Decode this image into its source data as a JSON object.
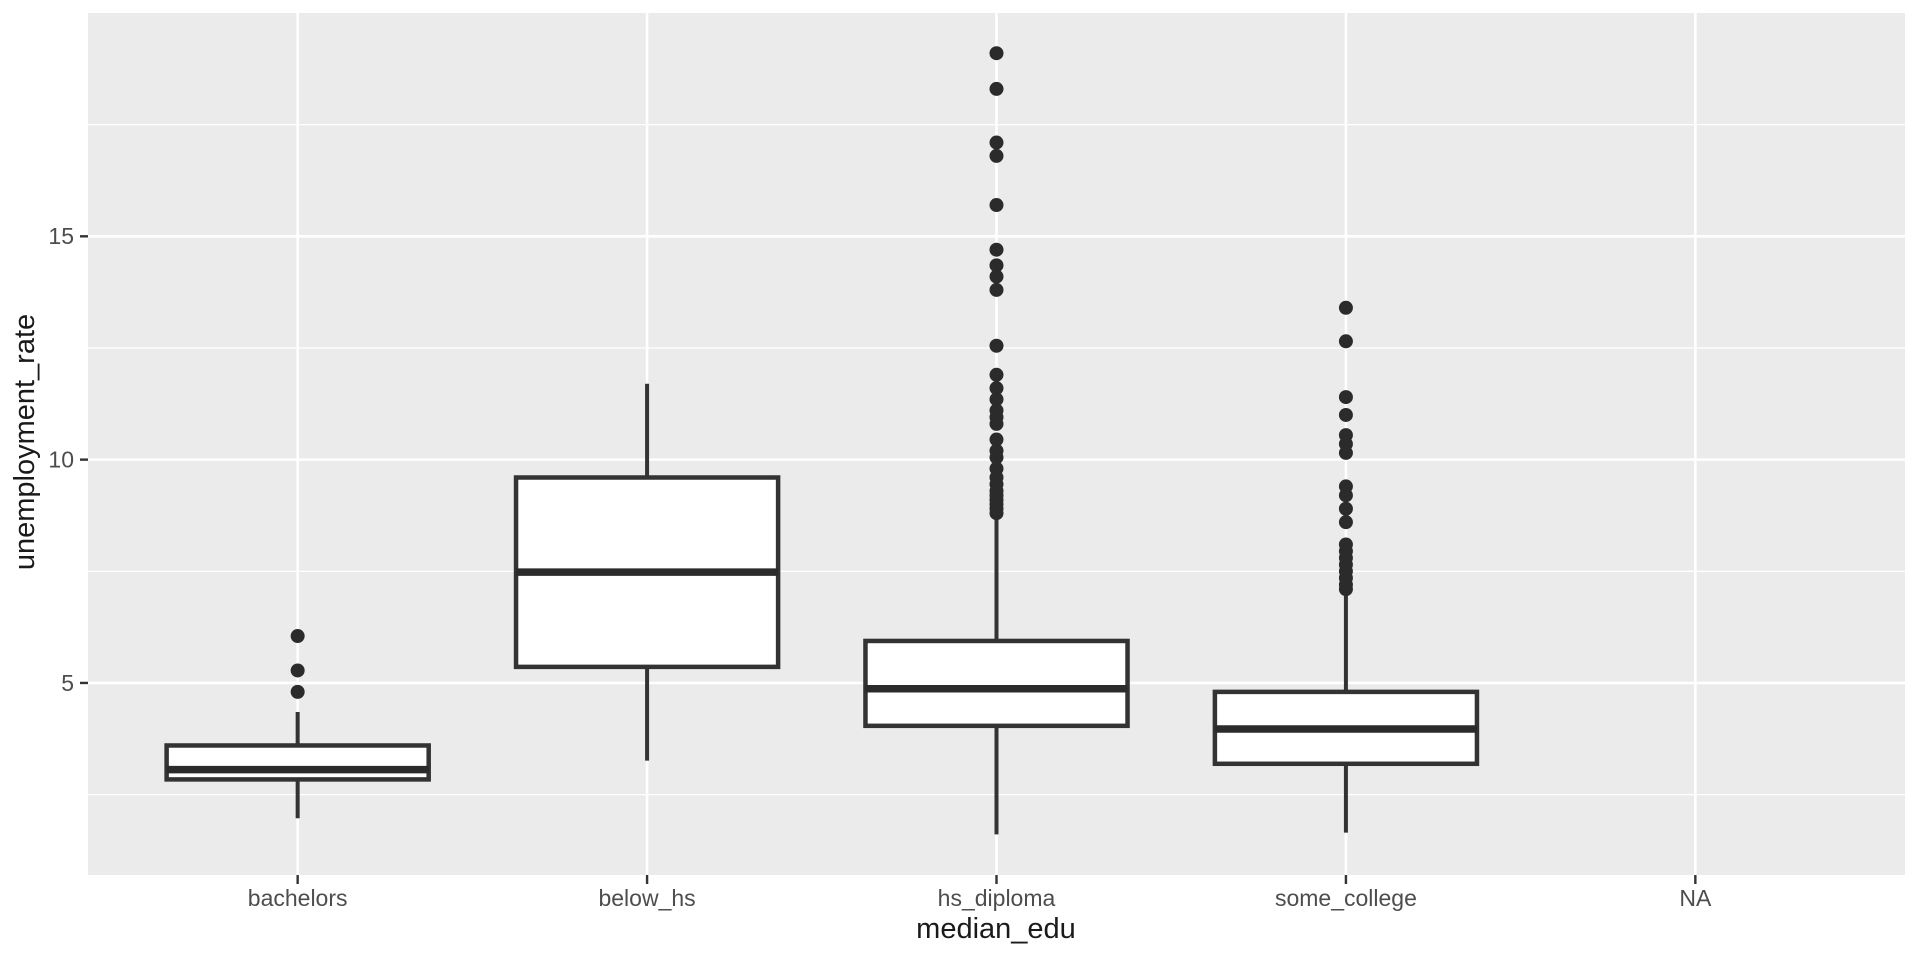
{
  "figure": {
    "background": "#ffffff",
    "panel_background": "#EBEBEB",
    "grid_color": "#FFFFFF",
    "box_stroke": "#333333",
    "box_fill": "#FFFFFF",
    "median_stroke": "#2b2b2b",
    "point_color": "#2b2b2b",
    "tick_label_color": "#4D4D4D",
    "tick_mark_color": "#333333",
    "axis_title_color": "#1a1a1a"
  },
  "chart_data": {
    "type": "boxplot",
    "title": "",
    "xlabel": "median_edu",
    "ylabel": "unemployment_rate",
    "categories": [
      "bachelors",
      "below_hs",
      "hs_diploma",
      "some_college",
      "NA"
    ],
    "y_ticks": [
      5,
      10,
      15
    ],
    "y_minor_ticks": [
      2.5,
      7.5,
      12.5,
      17.5
    ],
    "ylim": [
      0.7,
      20.0
    ],
    "grid": true,
    "legend": "none",
    "series": [
      {
        "category": "bachelors",
        "lower_whisker": 1.97,
        "q1": 2.84,
        "median": 3.06,
        "q3": 3.6,
        "upper_whisker": 4.35,
        "outliers": [
          4.8,
          5.28,
          6.05
        ]
      },
      {
        "category": "below_hs",
        "lower_whisker": 3.26,
        "q1": 5.36,
        "median": 7.48,
        "q3": 9.6,
        "upper_whisker": 11.7,
        "outliers": []
      },
      {
        "category": "hs_diploma",
        "lower_whisker": 1.61,
        "q1": 4.04,
        "median": 4.87,
        "q3": 5.94,
        "upper_whisker": 8.73,
        "outliers": [
          8.8,
          8.9,
          9.0,
          9.1,
          9.2,
          9.3,
          9.45,
          9.6,
          9.8,
          10.05,
          10.2,
          10.45,
          10.8,
          10.95,
          11.1,
          11.35,
          11.6,
          11.9,
          12.55,
          13.8,
          14.1,
          14.35,
          14.7,
          15.7,
          16.8,
          17.1,
          18.3,
          19.1
        ]
      },
      {
        "category": "some_college",
        "lower_whisker": 1.65,
        "q1": 3.19,
        "median": 3.97,
        "q3": 4.8,
        "upper_whisker": 7.05,
        "outliers": [
          7.1,
          7.2,
          7.35,
          7.5,
          7.65,
          7.8,
          7.95,
          8.1,
          8.6,
          8.9,
          9.2,
          9.4,
          10.15,
          10.35,
          10.55,
          11.0,
          11.4,
          12.65,
          13.4
        ]
      },
      {
        "category": "NA",
        "lower_whisker": null,
        "q1": null,
        "median": null,
        "q3": null,
        "upper_whisker": null,
        "outliers": []
      }
    ]
  }
}
